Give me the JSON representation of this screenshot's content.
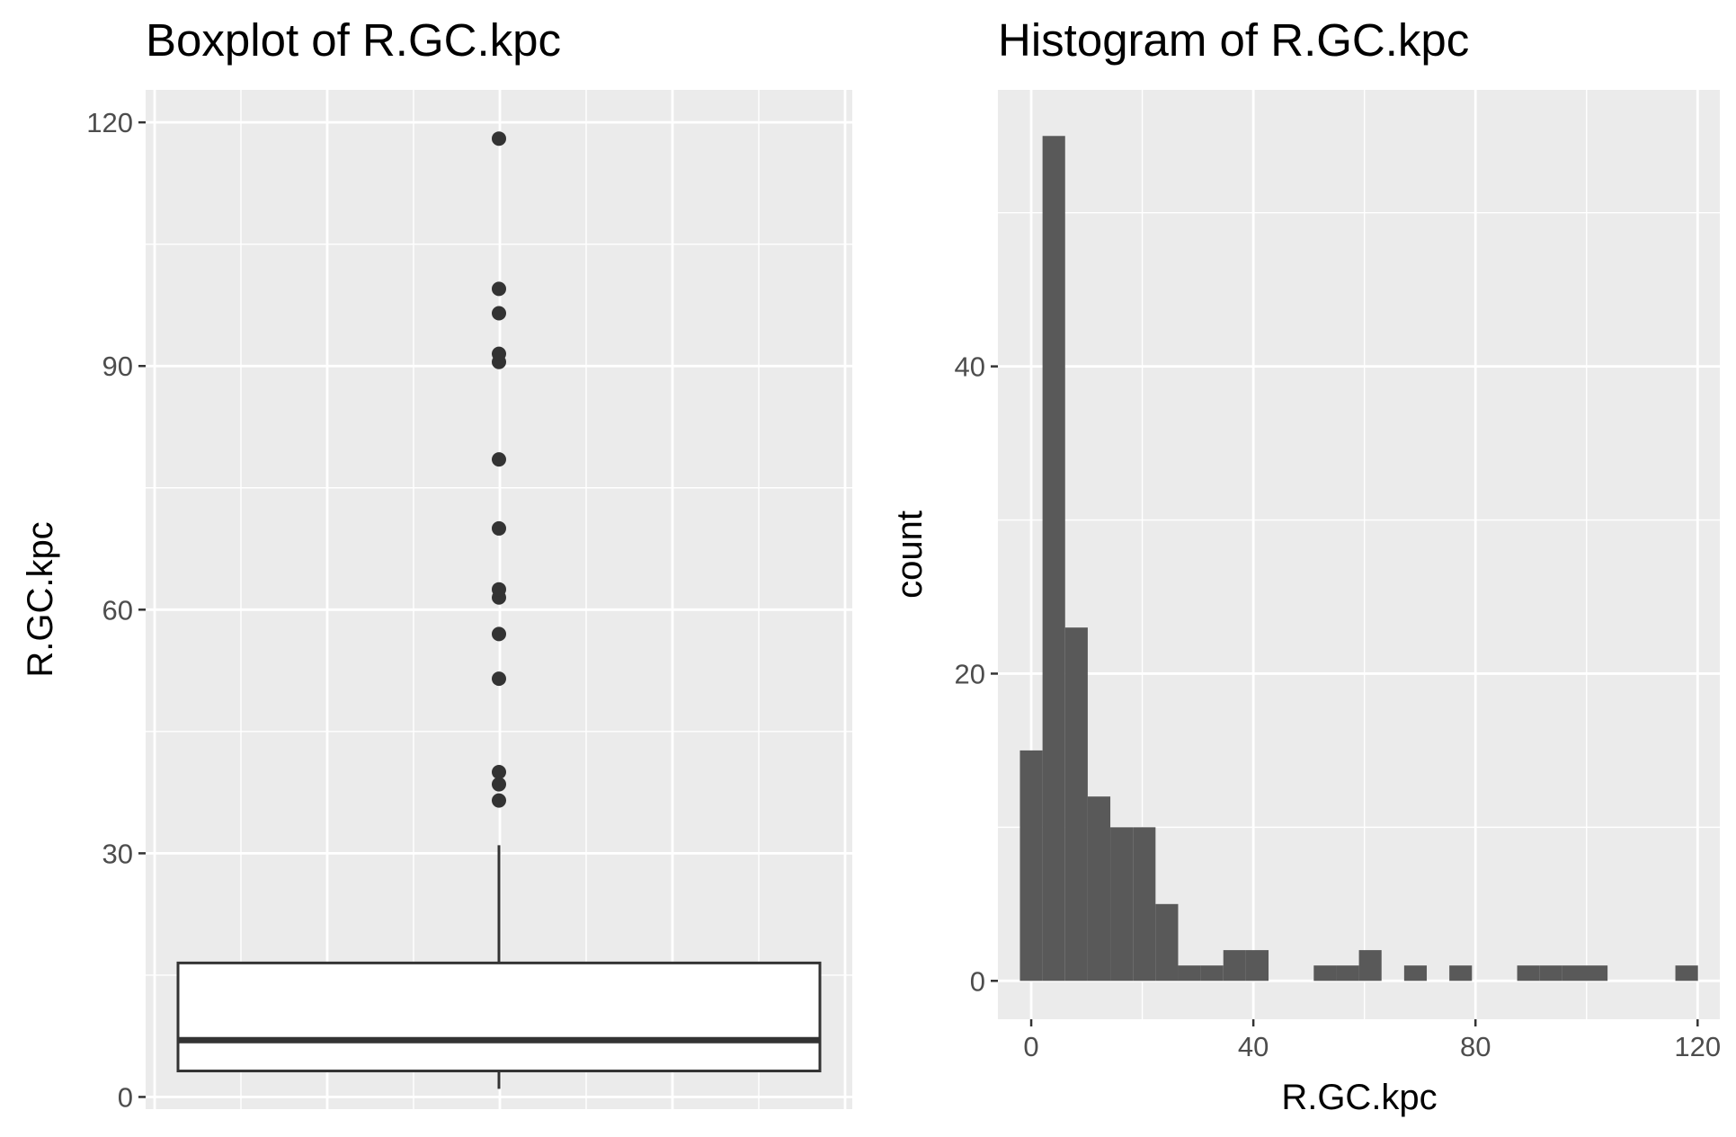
{
  "chart_data": [
    {
      "type": "box",
      "title": "Boxplot of R.GC.kpc",
      "xlabel": "",
      "ylabel": "R.GC.kpc",
      "ylim": [
        -1.5,
        124
      ],
      "yticks": [
        0,
        30,
        60,
        90,
        120
      ],
      "grid": true,
      "stats": {
        "min": 1,
        "q1": 3.2,
        "median": 7,
        "q3": 16.5,
        "whisker_high": 31
      },
      "outliers": [
        36.5,
        38.5,
        40,
        51.5,
        57,
        61.5,
        62.5,
        70,
        78.5,
        90.5,
        91.5,
        96.5,
        99.5,
        118
      ]
    },
    {
      "type": "bar",
      "title": "Histogram of R.GC.kpc",
      "xlabel": "R.GC.kpc",
      "ylabel": "count",
      "xlim": [
        -6,
        124
      ],
      "ylim": [
        -2.5,
        58
      ],
      "xticks": [
        0,
        40,
        80,
        120
      ],
      "yticks": [
        0,
        20,
        40
      ],
      "grid": true,
      "bin_width": 4.07,
      "bin_start": -2.035,
      "counts": [
        15,
        55,
        23,
        12,
        10,
        10,
        5,
        1,
        1,
        2,
        2,
        0,
        0,
        1,
        1,
        2,
        0,
        1,
        0,
        1,
        0,
        0,
        1,
        1,
        1,
        1,
        0,
        0,
        0,
        1
      ]
    }
  ]
}
